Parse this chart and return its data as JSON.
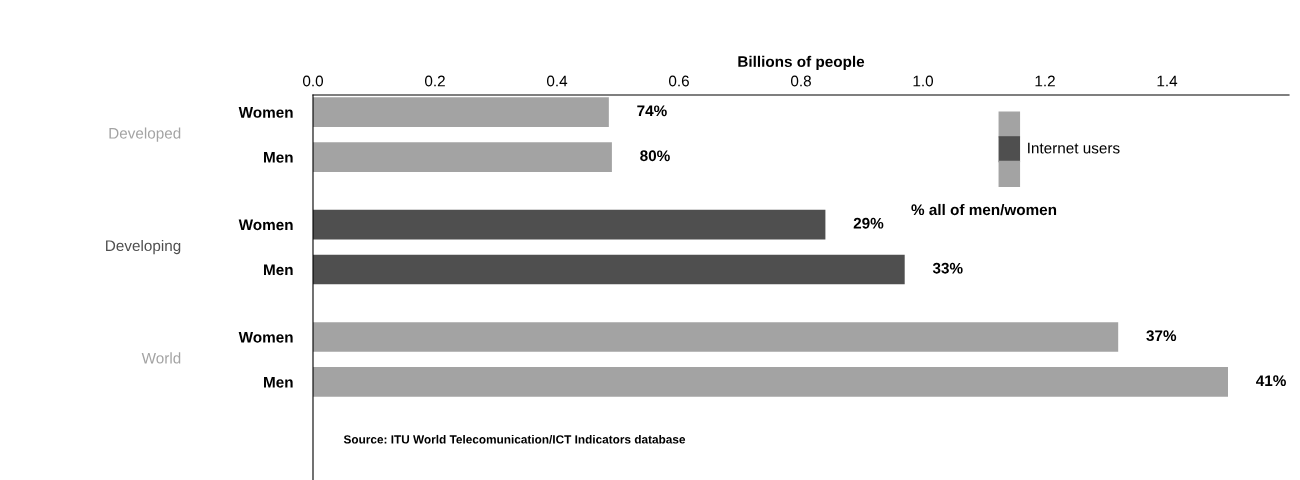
{
  "chart_data": {
    "type": "bar",
    "orientation": "horizontal",
    "xlabel": "Billions of people",
    "categories": [
      "Women",
      "Men",
      "Women",
      "Men",
      "Women",
      "Men"
    ],
    "series": [
      {
        "name": "Internet users",
        "colors": [
          "#a3a3a3",
          "#a3a3a3",
          "#4f4f4f",
          "#4f4f4f",
          "#a3a3a3",
          "#a3a3a3"
        ],
        "values": [
          0.485,
          0.49,
          0.84,
          0.97,
          1.32,
          1.5
        ]
      }
    ],
    "xlim": [
      0,
      1.6
    ],
    "xticks": [
      {
        "value": 0.0,
        "label": "0.0"
      },
      0.2,
      0.4,
      0.6,
      0.8,
      {
        "value": 1.0,
        "label": "1.0"
      },
      1.2,
      1.4
    ],
    "grid": false,
    "legend": "top right",
    "annotations": [
      "Developed",
      "Developing",
      "World",
      "74%",
      "80%",
      "29%",
      "33%",
      "37%",
      "41%",
      "% all of men/women",
      "Source: ITU World Telecomunication/ICT Indicators database"
    ]
  }
}
